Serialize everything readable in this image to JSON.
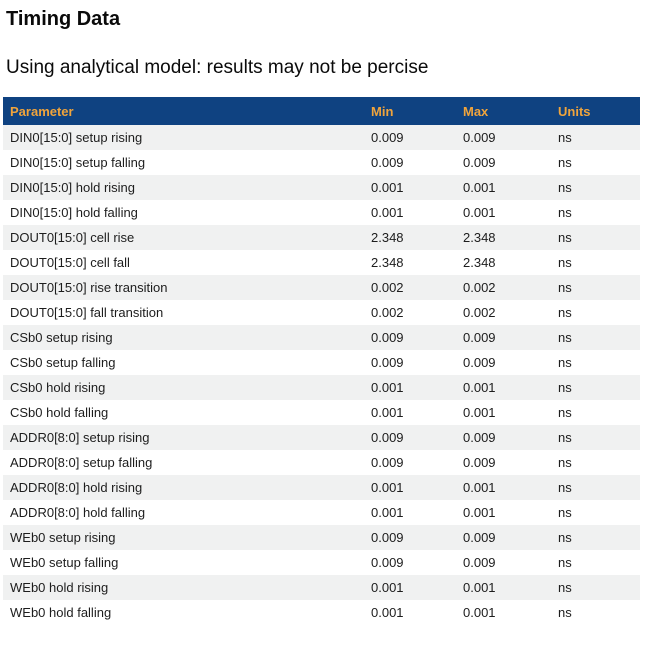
{
  "page": {
    "title": "Timing Data",
    "subtitle": "Using analytical model: results may not be percise"
  },
  "table": {
    "columns": [
      "Parameter",
      "Min",
      "Max",
      "Units"
    ],
    "rows": [
      {
        "parameter": "DIN0[15:0] setup rising",
        "min": "0.009",
        "max": "0.009",
        "units": "ns"
      },
      {
        "parameter": "DIN0[15:0] setup falling",
        "min": "0.009",
        "max": "0.009",
        "units": "ns"
      },
      {
        "parameter": "DIN0[15:0] hold rising",
        "min": "0.001",
        "max": "0.001",
        "units": "ns"
      },
      {
        "parameter": "DIN0[15:0] hold falling",
        "min": "0.001",
        "max": "0.001",
        "units": "ns"
      },
      {
        "parameter": "DOUT0[15:0] cell rise",
        "min": "2.348",
        "max": "2.348",
        "units": "ns"
      },
      {
        "parameter": "DOUT0[15:0] cell fall",
        "min": "2.348",
        "max": "2.348",
        "units": "ns"
      },
      {
        "parameter": "DOUT0[15:0] rise transition",
        "min": "0.002",
        "max": "0.002",
        "units": "ns"
      },
      {
        "parameter": "DOUT0[15:0] fall transition",
        "min": "0.002",
        "max": "0.002",
        "units": "ns"
      },
      {
        "parameter": "CSb0 setup rising",
        "min": "0.009",
        "max": "0.009",
        "units": "ns"
      },
      {
        "parameter": "CSb0 setup falling",
        "min": "0.009",
        "max": "0.009",
        "units": "ns"
      },
      {
        "parameter": "CSb0 hold rising",
        "min": "0.001",
        "max": "0.001",
        "units": "ns"
      },
      {
        "parameter": "CSb0 hold falling",
        "min": "0.001",
        "max": "0.001",
        "units": "ns"
      },
      {
        "parameter": "ADDR0[8:0] setup rising",
        "min": "0.009",
        "max": "0.009",
        "units": "ns"
      },
      {
        "parameter": "ADDR0[8:0] setup falling",
        "min": "0.009",
        "max": "0.009",
        "units": "ns"
      },
      {
        "parameter": "ADDR0[8:0] hold rising",
        "min": "0.001",
        "max": "0.001",
        "units": "ns"
      },
      {
        "parameter": "ADDR0[8:0] hold falling",
        "min": "0.001",
        "max": "0.001",
        "units": "ns"
      },
      {
        "parameter": "WEb0 setup rising",
        "min": "0.009",
        "max": "0.009",
        "units": "ns"
      },
      {
        "parameter": "WEb0 setup falling",
        "min": "0.009",
        "max": "0.009",
        "units": "ns"
      },
      {
        "parameter": "WEb0 hold rising",
        "min": "0.001",
        "max": "0.001",
        "units": "ns"
      },
      {
        "parameter": "WEb0 hold falling",
        "min": "0.001",
        "max": "0.001",
        "units": "ns"
      }
    ],
    "colors": {
      "header_bg": "#0f4281",
      "header_text": "#f0a43c",
      "stripe": "#f0f1f1"
    }
  }
}
